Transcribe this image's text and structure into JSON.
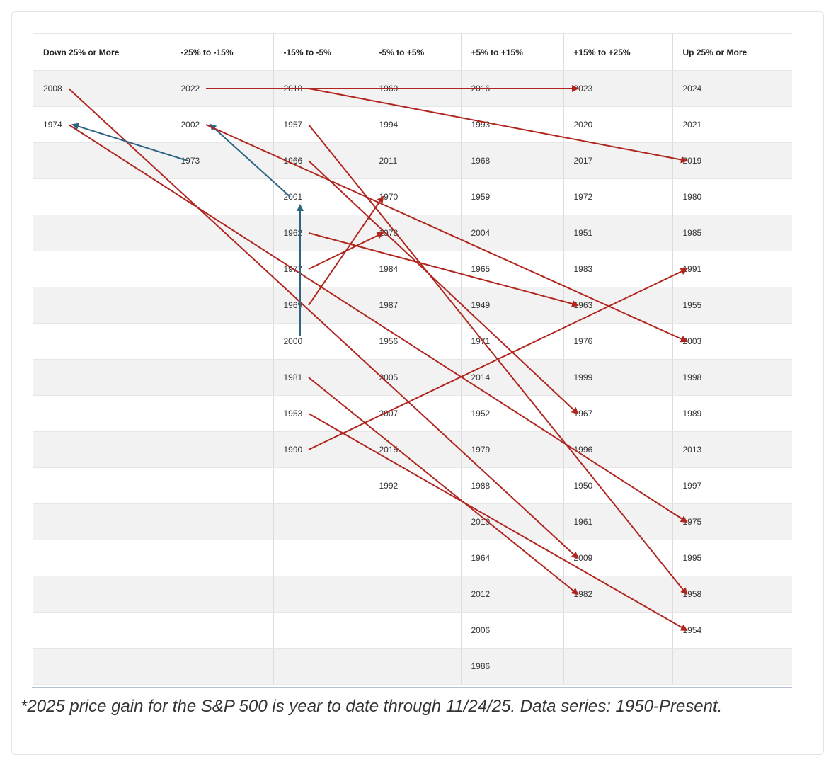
{
  "table": {
    "headers": [
      "Down 25% or More",
      "-25% to -15%",
      "-15% to -5%",
      "-5% to +5%",
      "+5% to +15%",
      "+15% to +25%",
      "Up 25% or More"
    ],
    "columns": [
      [
        "2008",
        "1974"
      ],
      [
        "2022",
        "2002",
        "1973"
      ],
      [
        "2018",
        "1957",
        "1966",
        "2001",
        "1962",
        "1977",
        "1969",
        "2000",
        "1981",
        "1953",
        "1990"
      ],
      [
        "1960",
        "1994",
        "2011",
        "1970",
        "1978",
        "1984",
        "1987",
        "1956",
        "2005",
        "2007",
        "2015",
        "1992"
      ],
      [
        "2016",
        "1993",
        "1968",
        "1959",
        "2004",
        "1965",
        "1949",
        "1971",
        "2014",
        "1952",
        "1979",
        "1988",
        "2010",
        "1964",
        "2012",
        "2006",
        "1986"
      ],
      [
        "2023",
        "2020",
        "2017",
        "1972",
        "1951",
        "1983",
        "1963",
        "1976",
        "1999",
        "1967",
        "1996",
        "1950",
        "1961",
        "2009",
        "1982"
      ],
      [
        "2024",
        "2021",
        "2019",
        "1980",
        "1985",
        "1991",
        "1955",
        "2003",
        "1998",
        "1989",
        "2013",
        "1997",
        "1975",
        "1995",
        "1958",
        "1954"
      ]
    ]
  },
  "arrows": [
    {
      "from": [
        2022,
        "-25% to -15%"
      ],
      "to": [
        2023,
        "+15% to +25%"
      ],
      "color": "#b0261f"
    },
    {
      "from": [
        2018,
        "-15% to -5%"
      ],
      "to": [
        2019,
        "Up 25% or More"
      ],
      "color": "#b0261f"
    },
    {
      "from": [
        2008,
        "Down 25% or More"
      ],
      "to": [
        2009,
        "+15% to +25%"
      ],
      "color": "#b0261f"
    },
    {
      "from": [
        1974,
        "Down 25% or More"
      ],
      "to": [
        1975,
        "Up 25% or More"
      ],
      "color": "#b0261f"
    },
    {
      "from": [
        1973,
        "-25% to -15%"
      ],
      "to": [
        1974,
        "Down 25% or More"
      ],
      "color": "#2e6484"
    },
    {
      "from": [
        2001,
        "-15% to -5%"
      ],
      "to": [
        2002,
        "-25% to -15%"
      ],
      "color": "#2e6484"
    },
    {
      "from": [
        2000,
        "-15% to -5%"
      ],
      "to": [
        2001,
        "-15% to -5%"
      ],
      "color": "#2e6484"
    },
    {
      "from": [
        2002,
        "-25% to -15%"
      ],
      "to": [
        2003,
        "Up 25% or More"
      ],
      "color": "#b0261f"
    },
    {
      "from": [
        1957,
        "-15% to -5%"
      ],
      "to": [
        1958,
        "Up 25% or More"
      ],
      "color": "#b0261f"
    },
    {
      "from": [
        1966,
        "-15% to -5%"
      ],
      "to": [
        1967,
        "+15% to +25%"
      ],
      "color": "#b0261f"
    },
    {
      "from": [
        1962,
        "-15% to -5%"
      ],
      "to": [
        1963,
        "+15% to +25%"
      ],
      "color": "#b0261f"
    },
    {
      "from": [
        1969,
        "-15% to -5%"
      ],
      "to": [
        1970,
        "-5% to +5%"
      ],
      "color": "#b0261f"
    },
    {
      "from": [
        1977,
        "-15% to -5%"
      ],
      "to": [
        1978,
        "-5% to +5%"
      ],
      "color": "#b0261f"
    },
    {
      "from": [
        1981,
        "-15% to -5%"
      ],
      "to": [
        1982,
        "+15% to +25%"
      ],
      "color": "#b0261f"
    },
    {
      "from": [
        1953,
        "-15% to -5%"
      ],
      "to": [
        1954,
        "Up 25% or More"
      ],
      "color": "#b0261f"
    },
    {
      "from": [
        1990,
        "-15% to -5%"
      ],
      "to": [
        1991,
        "Up 25% or More"
      ],
      "color": "#b0261f"
    }
  ],
  "footnote": "*2025 price gain for the S&P 500 is year to date through 11/24/25. Data series: 1950-Present."
}
